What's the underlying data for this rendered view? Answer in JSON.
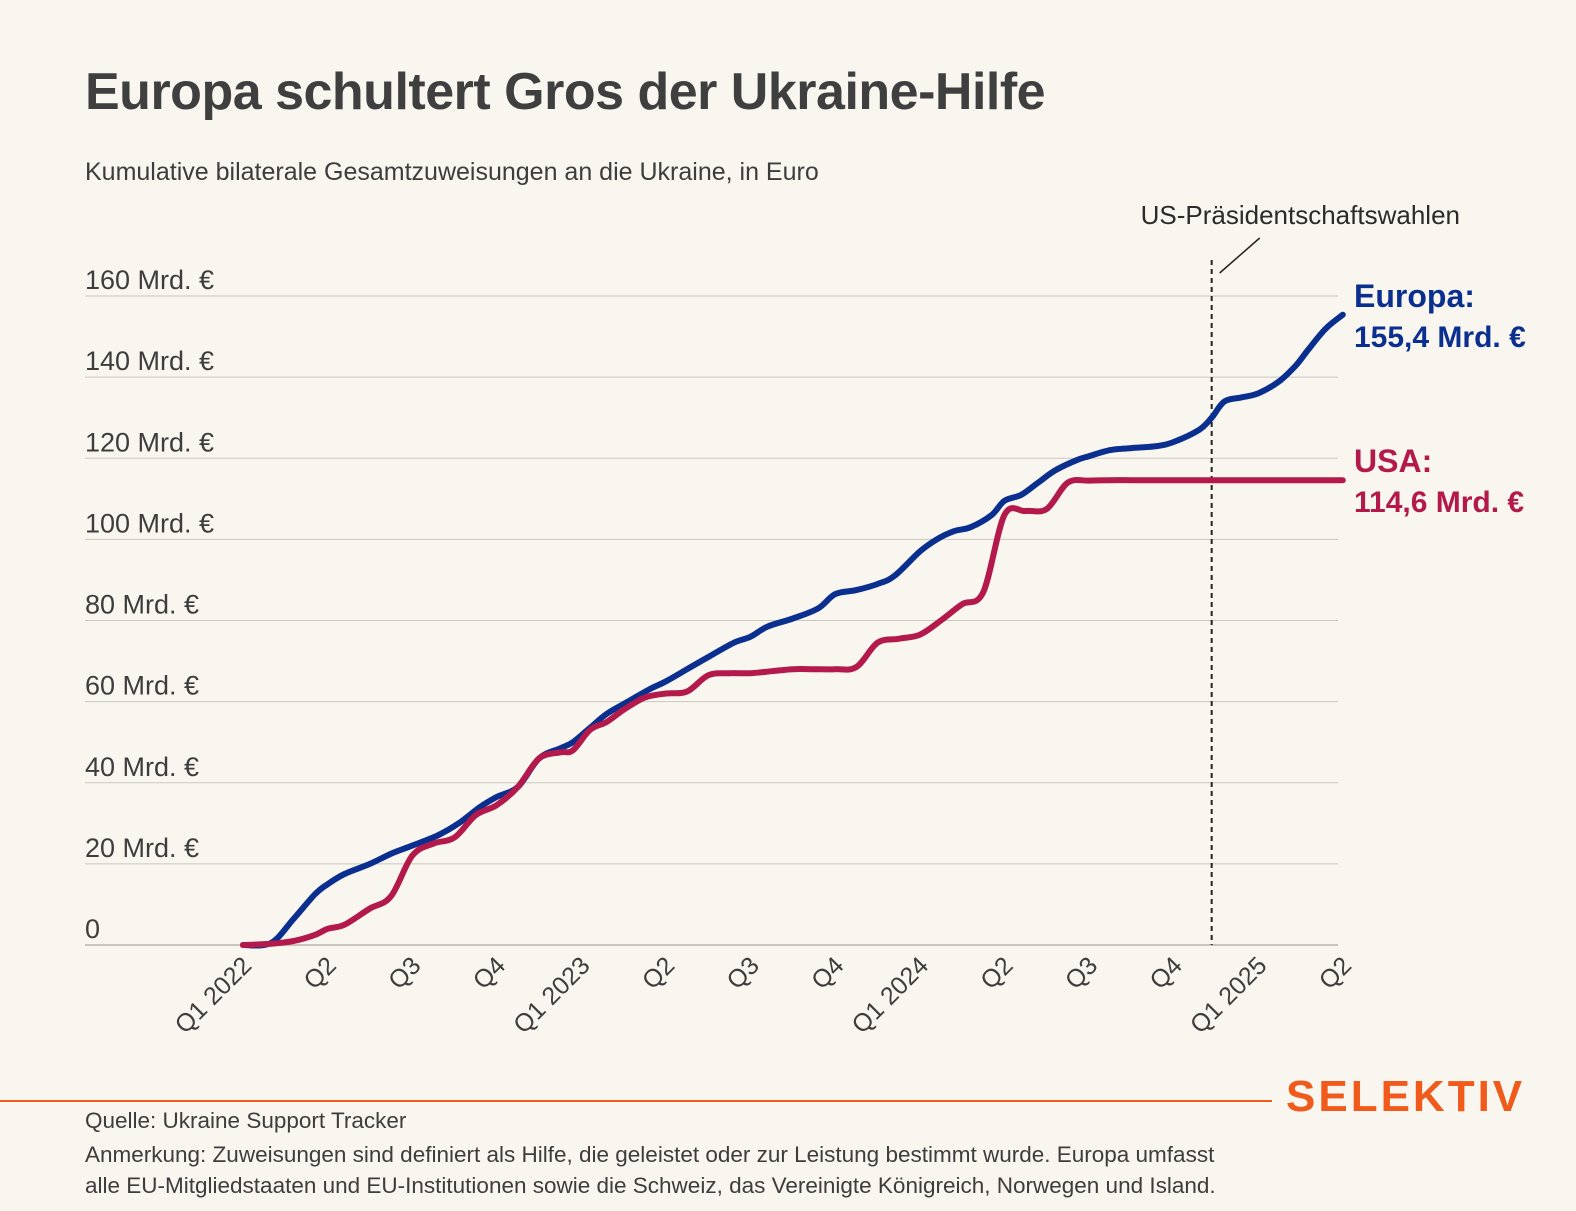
{
  "title": "Europa schultert Gros der Ukraine-Hilfe",
  "subtitle": "Kumulative bilaterale Gesamtzuweisungen an die Ukraine, in Euro",
  "brand": "SELEKTIV",
  "source": "Quelle: Ukraine Support Tracker",
  "note_line1": "Anmerkung: Zuweisungen sind definiert als Hilfe, die geleistet oder zur Leistung bestimmt wurde. Europa umfasst",
  "note_line2": "alle EU-Mitgliedstaaten und EU-Institutionen sowie die Schweiz, das Vereinigte Königreich, Norwegen und Island.",
  "colors": {
    "europa": "#0a2f8f",
    "usa": "#b3194b",
    "grid": "#c9c7c0",
    "brand": "#f05a1a",
    "background": "#f8f6ef"
  },
  "chart_data": {
    "type": "line",
    "title": "Europa schultert Gros der Ukraine-Hilfe",
    "ylim": [
      0,
      160
    ],
    "y_ticks": [
      0,
      20,
      40,
      60,
      80,
      100,
      120,
      140,
      160
    ],
    "y_tick_labels": [
      "0",
      "20 Mrd. €",
      "40 Mrd. €",
      "60 Mrd. €",
      "80 Mrd. €",
      "100 Mrd. €",
      "120 Mrd. €",
      "140 Mrd. €",
      "160 Mrd. €"
    ],
    "x_ticks": [
      0,
      1,
      2,
      3,
      4,
      5,
      6,
      7,
      8,
      9,
      10,
      11,
      12,
      13
    ],
    "x_tick_labels": [
      "Q1 2022",
      "Q2",
      "Q3",
      "Q4",
      "Q1 2023",
      "Q2",
      "Q3",
      "Q4",
      "Q1 2024",
      "Q2",
      "Q3",
      "Q4",
      "Q1 2025",
      "Q2"
    ],
    "grid": true,
    "annotation": {
      "label": "US-Präsidentschaftswahlen",
      "x": 11.45
    },
    "series": [
      {
        "name": "Europa",
        "end_label_name": "Europa:",
        "end_label_value": "155,4 Mrd. €",
        "color": "#0a2f8f",
        "x": [
          0,
          0.33,
          0.6,
          0.85,
          1.0,
          1.2,
          1.5,
          1.75,
          2.0,
          2.3,
          2.55,
          2.8,
          3.0,
          3.25,
          3.5,
          3.75,
          3.9,
          4.1,
          4.3,
          4.55,
          4.8,
          5.0,
          5.25,
          5.5,
          5.8,
          6.0,
          6.2,
          6.5,
          6.8,
          7.0,
          7.25,
          7.5,
          7.7,
          8.0,
          8.2,
          8.4,
          8.6,
          8.85,
          9.0,
          9.2,
          9.4,
          9.6,
          9.85,
          10.0,
          10.25,
          10.5,
          10.8,
          11.0,
          11.3,
          11.45,
          11.6,
          11.8,
          12.0,
          12.25,
          12.45,
          12.6,
          12.8,
          13.0
        ],
        "values": [
          0,
          0.5,
          6.5,
          12.5,
          15,
          17.5,
          20,
          22.5,
          24.5,
          27,
          30,
          34,
          36.5,
          39,
          46,
          48.5,
          50,
          53.5,
          57,
          60,
          63,
          65,
          68,
          71,
          74.5,
          76,
          78.5,
          80.5,
          83,
          86.5,
          87.5,
          89,
          91,
          97,
          100,
          102,
          103,
          106,
          109.5,
          111,
          114,
          117,
          119.5,
          120.5,
          122,
          122.5,
          123,
          124,
          127,
          130,
          134,
          135,
          136,
          139,
          143,
          147,
          152,
          155.4
        ]
      },
      {
        "name": "USA",
        "end_label_name": "USA:",
        "end_label_value": "114,6 Mrd. €",
        "color": "#b3194b",
        "x": [
          0,
          0.33,
          0.6,
          0.85,
          1.0,
          1.2,
          1.5,
          1.75,
          2.0,
          2.25,
          2.5,
          2.75,
          3.0,
          3.25,
          3.5,
          3.75,
          3.9,
          4.1,
          4.3,
          4.5,
          4.75,
          5.0,
          5.25,
          5.5,
          5.75,
          6.0,
          6.25,
          6.5,
          6.75,
          7.0,
          7.25,
          7.5,
          7.75,
          8.0,
          8.25,
          8.5,
          8.75,
          9.0,
          9.25,
          9.5,
          9.75,
          10.0,
          10.25,
          10.5,
          10.75,
          11.0,
          11.3,
          11.45,
          11.65,
          11.85,
          12.0,
          12.5,
          13.0
        ],
        "values": [
          0,
          0.3,
          1,
          2.5,
          4,
          5,
          9,
          12,
          22,
          25,
          26.5,
          32,
          34.5,
          39,
          46,
          47.5,
          48,
          53,
          55,
          58,
          61,
          62,
          62.5,
          66.5,
          67,
          67,
          67.5,
          68,
          68,
          68,
          68.5,
          74.5,
          75.5,
          76.5,
          80,
          84,
          87,
          106,
          107,
          107.5,
          114,
          114.5,
          114.6,
          114.6,
          114.6,
          114.6,
          114.6,
          114.6,
          114.6,
          114.6,
          114.6,
          114.6,
          114.6
        ]
      }
    ]
  }
}
